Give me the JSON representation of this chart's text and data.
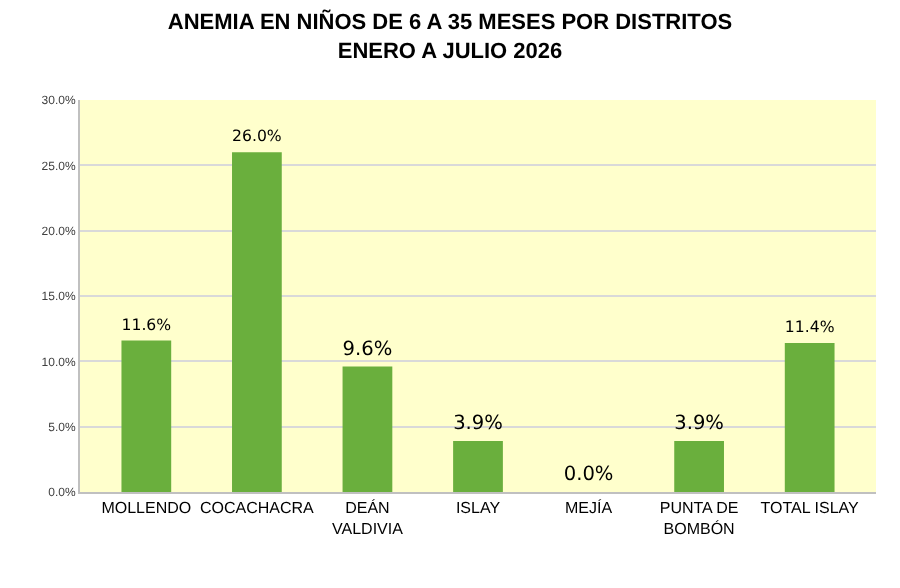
{
  "chart_data": {
    "type": "bar",
    "title": "ANEMIA EN NIÑOS DE 6 A 35 MESES POR DISTRITOS\nENERO A JULIO 2026",
    "categories": [
      "MOLLENDO",
      "COCACHACRA",
      "DEÁN VALDIVIA",
      "ISLAY",
      "MEJÍA",
      "PUNTA DE BOMBÓN",
      "TOTAL ISLAY"
    ],
    "values": [
      11.6,
      26.0,
      9.6,
      3.9,
      0.0,
      3.9,
      11.4
    ],
    "value_labels": [
      "11.6%",
      "26.0%",
      "9.6%",
      "3.9%",
      "0.0%",
      "3.9%",
      "11.4%"
    ],
    "color": "#6aaf3d",
    "ylim": [
      0,
      30
    ],
    "yticks": [
      {
        "value": 0,
        "label": "0.0%"
      },
      {
        "value": 5,
        "label": "5.0%"
      },
      {
        "value": 10,
        "label": "10.0%"
      },
      {
        "value": 15,
        "label": "15.0%"
      },
      {
        "value": 20,
        "label": "20.0%"
      },
      {
        "value": 25,
        "label": "25.0%"
      },
      {
        "value": 30,
        "label": "30.0%"
      }
    ],
    "grid": "y"
  }
}
